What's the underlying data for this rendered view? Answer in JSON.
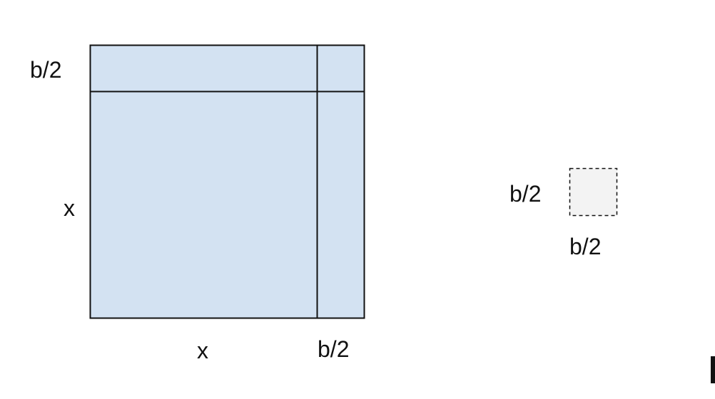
{
  "colors": {
    "square_fill": "#d3e2f2",
    "missing_fill": "#f3f3f3",
    "stroke": "#111111"
  },
  "labels": {
    "left_top": "b/2",
    "left_middle": "x",
    "bottom_left": "x",
    "bottom_right": "b/2",
    "small_left": "b/2",
    "small_bottom": "b/2"
  }
}
